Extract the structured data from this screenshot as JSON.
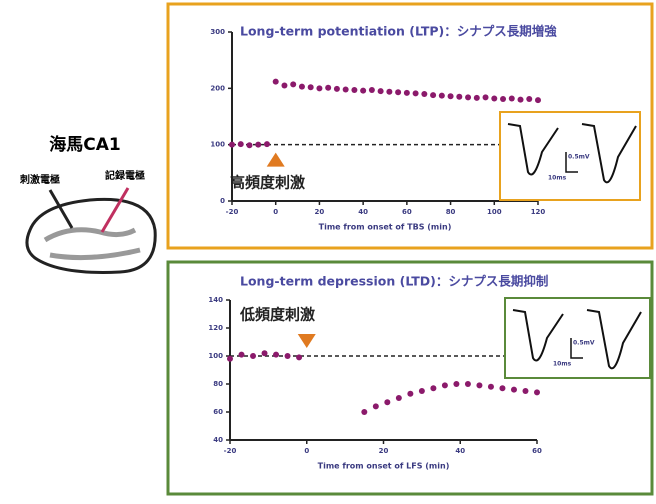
{
  "diagram": {
    "title": "海馬CA1",
    "labels": [
      "刺激電極",
      "記録電極"
    ]
  },
  "chart_data": [
    {
      "type": "scatter",
      "title": "Long-term potentiation (LTP)：シナプス長期増強",
      "annotation": "高頻度刺激",
      "x_label": "Time from onset of TBS (min)",
      "inset_labels": [
        "0.5mV",
        "10ms"
      ],
      "color": "#8b1a6b",
      "frame_color": "#e8a21e",
      "reference_line": 100,
      "x": [
        -20,
        -16,
        -12,
        -8,
        -4,
        0,
        4,
        8,
        12,
        16,
        20,
        24,
        28,
        32,
        36,
        40,
        44,
        48,
        52,
        56,
        60,
        64,
        68,
        72,
        76,
        80,
        84,
        88,
        92,
        96,
        100,
        104,
        108,
        112,
        116,
        120
      ],
      "values": [
        100,
        101,
        99,
        100,
        101,
        212,
        205,
        207,
        203,
        202,
        200,
        201,
        199,
        198,
        197,
        196,
        197,
        195,
        194,
        193,
        192,
        191,
        190,
        188,
        187,
        186,
        185,
        184,
        183,
        184,
        182,
        181,
        182,
        180,
        181,
        179
      ],
      "xlim": [
        -20,
        120
      ],
      "xticks": [
        -20,
        0,
        20,
        40,
        60,
        80,
        100,
        120
      ],
      "ylim": [
        0,
        300
      ],
      "yticks": [
        0,
        100,
        200,
        300
      ]
    },
    {
      "type": "scatter",
      "title": "Long-term depression (LTD)：シナプス長期抑制",
      "annotation": "低頻度刺激",
      "x_label": "Time from onset of LFS (min)",
      "inset_labels": [
        "0.5mV",
        "10ms"
      ],
      "color": "#8b1a6b",
      "frame_color": "#5a8a3a",
      "reference_line": 100,
      "x": [
        -20,
        -17,
        -14,
        -11,
        -8,
        -5,
        -2,
        15,
        18,
        21,
        24,
        27,
        30,
        33,
        36,
        39,
        42,
        45,
        48,
        51,
        54,
        57,
        60
      ],
      "values": [
        98,
        101,
        100,
        102,
        101,
        100,
        99,
        60,
        64,
        67,
        70,
        73,
        75,
        77,
        79,
        80,
        80,
        79,
        78,
        77,
        76,
        75,
        74
      ],
      "xlim": [
        -20,
        60
      ],
      "xticks": [
        -20,
        0,
        20,
        40,
        60
      ],
      "ylim": [
        40,
        140
      ],
      "yticks": [
        40,
        60,
        80,
        100,
        120,
        140
      ]
    }
  ]
}
